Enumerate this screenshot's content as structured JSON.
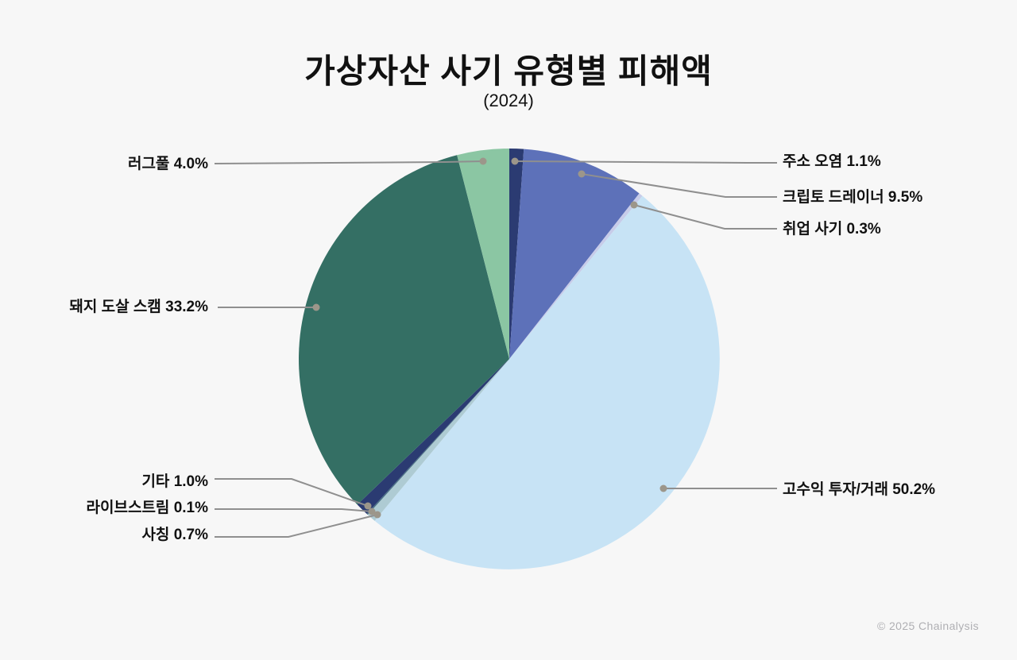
{
  "header": {
    "title": "가상자산 사기 유형별 피해액",
    "subtitle": "(2024)"
  },
  "footer": {
    "copyright": "© 2025 Chainalysis"
  },
  "colors": {
    "background": "#F7F7F7",
    "leader_line": "#8F8F8F",
    "leader_dot": "#9C968A",
    "label_text": "#111111",
    "footer_text": "#AFAFB3"
  },
  "chart_data": {
    "type": "pie",
    "title": "가상자산 사기 유형별 피해액",
    "subtitle": "(2024)",
    "unit": "%",
    "direction": "clockwise",
    "start_angle_deg": 0,
    "legend_position": "callout-labels",
    "slices": [
      {
        "id": "address-poisoning",
        "label": "주소 오염",
        "value": 1.1,
        "display": "주소 오염 1.1%",
        "color": "#2B3B72"
      },
      {
        "id": "crypto-drainer",
        "label": "크립토 드레이너",
        "value": 9.5,
        "display": "크립토 드레이너 9.5%",
        "color": "#5D71B9"
      },
      {
        "id": "job-scam",
        "label": "취업 사기",
        "value": 0.3,
        "display": "취업 사기 0.3%",
        "color": "#C7CCE9"
      },
      {
        "id": "high-yield-investment",
        "label": "고수익 투자/거래",
        "value": 50.2,
        "display": "고수익 투자/거래 50.2%",
        "color": "#C7E3F5"
      },
      {
        "id": "impersonation",
        "label": "사칭",
        "value": 0.7,
        "display": "사칭 0.7%",
        "color": "#AECBD3"
      },
      {
        "id": "livestream",
        "label": "라이브스트림",
        "value": 0.1,
        "display": "라이브스트림 0.1%",
        "color": "#4A7285"
      },
      {
        "id": "other",
        "label": "기타",
        "value": 1.0,
        "display": "기타 1.0%",
        "color": "#2B3B72"
      },
      {
        "id": "pig-butchering-scam",
        "label": "돼지 도살 스캠",
        "value": 33.2,
        "display": "돼지 도살 스캠 33.2%",
        "color": "#346F64"
      },
      {
        "id": "rug-pull",
        "label": "러그풀",
        "value": 4.0,
        "display": "러그풀 4.0%",
        "color": "#8BC6A3"
      }
    ]
  }
}
